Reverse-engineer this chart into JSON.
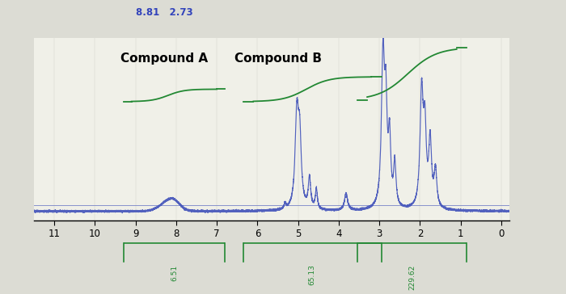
{
  "title_top_left": "8.81   2.73",
  "title_top_left_color": "#3344bb",
  "label_A": "Compound A",
  "label_B": "Compound B",
  "bg_color": "#dcdcd4",
  "plot_bg_color": "#f0f0e8",
  "spectrum_color": "#4455bb",
  "integral_color": "#228833",
  "integral_labels": [
    "6.51",
    "65.13",
    "229.62"
  ],
  "xticks": [
    0,
    1,
    2,
    3,
    4,
    5,
    6,
    7,
    8,
    9,
    10,
    11
  ],
  "xmin": 11.5,
  "xmax": -0.2
}
